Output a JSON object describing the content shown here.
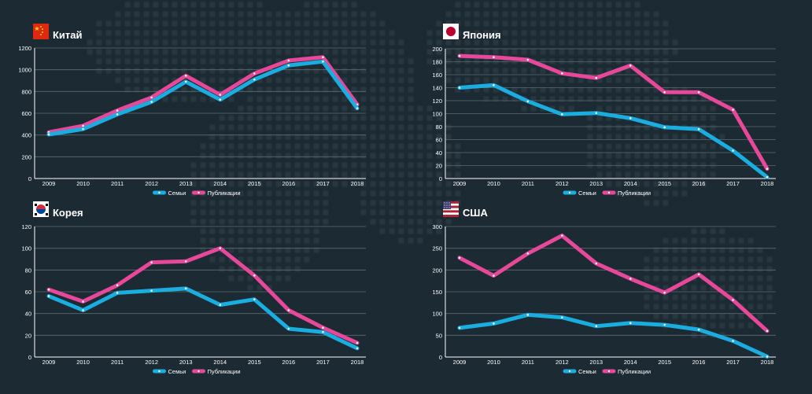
{
  "colors": {
    "background": "#1c2a33",
    "families": "#1aaee0",
    "publications": "#e8489a",
    "text": "#ffffff",
    "axis": "#ffffff",
    "grid": "#5e6a70"
  },
  "legend": {
    "families": "Семьи",
    "publications": "Публикации"
  },
  "chart_data": [
    {
      "type": "line",
      "title": "Китай",
      "flag": "china-flag",
      "x": [
        "2009",
        "2010",
        "2011",
        "2012",
        "2013",
        "2014",
        "2015",
        "2016",
        "2017",
        "2018"
      ],
      "ylim": [
        0,
        1200
      ],
      "yticks": [
        0,
        200,
        400,
        600,
        800,
        1000,
        1200
      ],
      "legend_position": "bottom",
      "series": [
        {
          "name": "Семьи",
          "values": [
            405,
            455,
            590,
            705,
            890,
            725,
            910,
            1040,
            1075,
            645
          ]
        },
        {
          "name": "Публикации",
          "values": [
            425,
            485,
            625,
            745,
            945,
            770,
            965,
            1085,
            1115,
            680
          ]
        }
      ]
    },
    {
      "type": "line",
      "title": "Япония",
      "flag": "japan-flag",
      "x": [
        "2009",
        "2010",
        "2011",
        "2012",
        "2013",
        "2014",
        "2015",
        "2016",
        "2017",
        "2018"
      ],
      "ylim": [
        0,
        200
      ],
      "yticks": [
        0,
        20,
        40,
        60,
        80,
        100,
        120,
        140,
        160,
        180,
        200
      ],
      "legend_position": "bottom",
      "series": [
        {
          "name": "Семьи",
          "values": [
            140,
            144,
            119,
            99,
            101,
            93,
            79,
            76,
            43,
            2
          ]
        },
        {
          "name": "Публикации",
          "values": [
            189,
            187,
            183,
            162,
            155,
            174,
            133,
            133,
            106,
            15
          ]
        }
      ]
    },
    {
      "type": "line",
      "title": "Корея",
      "flag": "korea-flag",
      "x": [
        "2009",
        "2010",
        "2011",
        "2012",
        "2013",
        "2014",
        "2015",
        "2016",
        "2017",
        "2018"
      ],
      "ylim": [
        0,
        120
      ],
      "yticks": [
        0,
        20,
        40,
        60,
        80,
        100,
        120
      ],
      "legend_position": "bottom",
      "series": [
        {
          "name": "Семьи",
          "values": [
            56,
            43,
            59,
            61,
            63,
            48,
            53,
            26,
            23,
            8
          ]
        },
        {
          "name": "Публикации",
          "values": [
            62,
            51,
            66,
            87,
            88,
            100,
            75,
            43,
            27,
            13
          ]
        }
      ]
    },
    {
      "type": "line",
      "title": "США",
      "flag": "usa-flag",
      "x": [
        "2009",
        "2010",
        "2011",
        "2012",
        "2013",
        "2014",
        "2015",
        "2016",
        "2017",
        "2018"
      ],
      "ylim": [
        0,
        300
      ],
      "yticks": [
        0,
        50,
        100,
        150,
        200,
        250,
        300
      ],
      "legend_position": "bottom",
      "series": [
        {
          "name": "Семьи",
          "values": [
            67,
            77,
            97,
            91,
            71,
            78,
            74,
            63,
            37,
            1
          ]
        },
        {
          "name": "Публикации",
          "values": [
            228,
            187,
            238,
            279,
            215,
            180,
            148,
            190,
            131,
            60
          ]
        }
      ]
    }
  ]
}
